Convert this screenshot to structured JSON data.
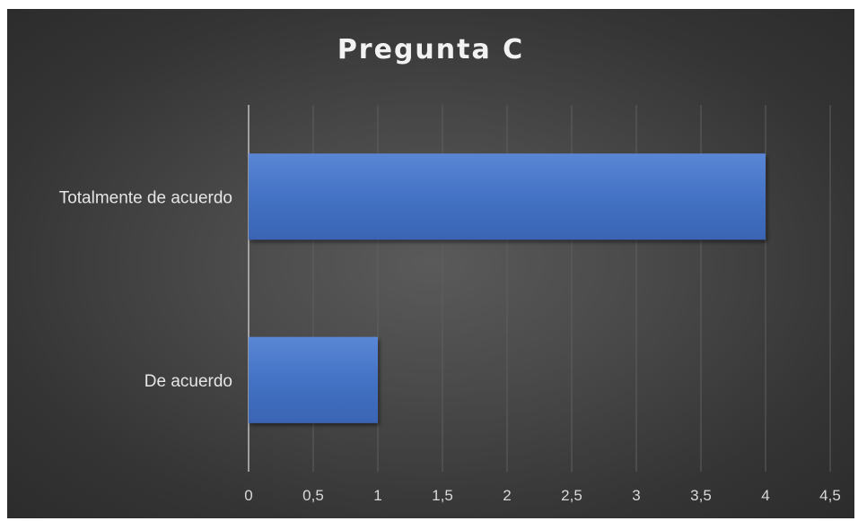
{
  "chart_data": {
    "type": "bar",
    "orientation": "horizontal",
    "title": "Pregunta C",
    "categories": [
      "Totalmente de acuerdo",
      "De acuerdo"
    ],
    "values": [
      4,
      1
    ],
    "xlim": [
      0,
      4.5
    ],
    "xticks": [
      "0",
      "0,5",
      "1",
      "1,5",
      "2",
      "2,5",
      "3",
      "3,5",
      "4",
      "4,5"
    ],
    "grid": true,
    "legend": "none",
    "colors": {
      "bar": "#4472c4",
      "background": "#404040",
      "gridline": "#5e5e5e",
      "text": "#d9d9d9"
    }
  }
}
